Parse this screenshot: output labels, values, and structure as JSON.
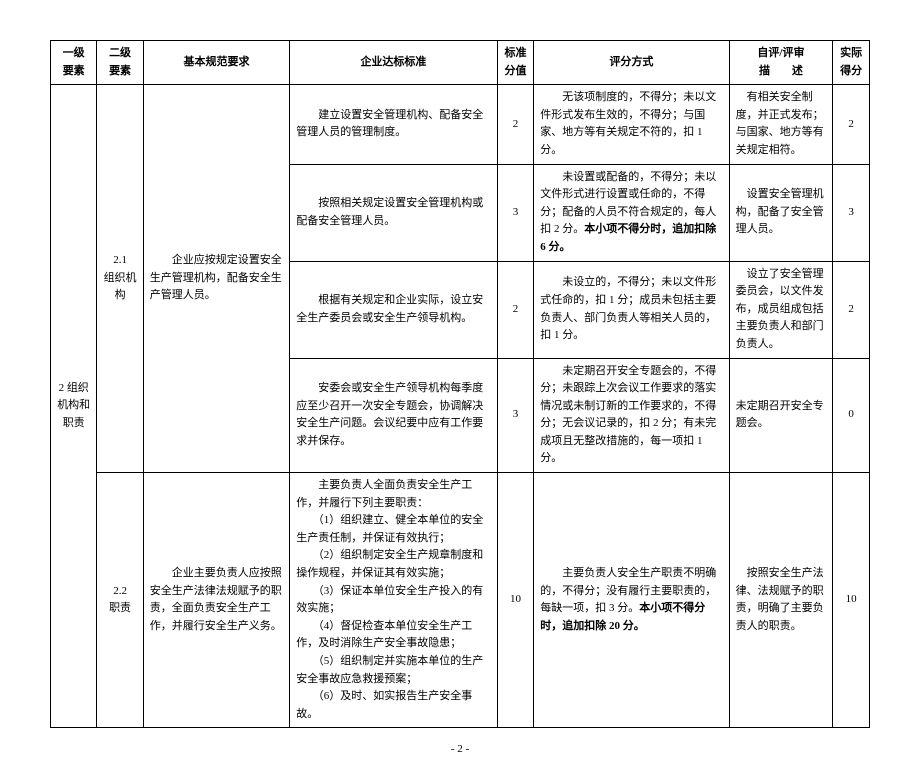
{
  "headers": {
    "level1": "一级\n要素",
    "level2": "二级\n要素",
    "basic": "基本规范要求",
    "standard": "企业达标标准",
    "score": "标准\n分值",
    "method": "评分方式",
    "desc": "自评/评审\n描　　述",
    "actual": "实际\n得分"
  },
  "level1_label": "2 组织机构和职责",
  "section21": {
    "level2": "2.1\n组织机构",
    "basic": "　　企业应按规定设置安全生产管理机构，配备安全生产管理人员。",
    "rows": [
      {
        "standard": "　　建立设置安全管理机构、配备安全管理人员的管理制度。",
        "score": "2",
        "method": "　　无该项制度的，不得分；未以文件形式发布生效的，不得分；与国家、地方等有关规定不符的，扣 1 分。",
        "desc": "　有相关安全制度，并正式发布；与国家、地方等有关规定相符。",
        "actual": "2"
      },
      {
        "standard": "　　按照相关规定设置安全管理机构或配备安全管理人员。",
        "score": "3",
        "method_html": "　　未设置或配备的，不得分；未以文件形式进行设置或任命的，不得分；配备的人员不符合规定的，每人扣 2 分。<b>本小项不得分时，追加扣除 6 分。</b>",
        "desc": "　设置安全管理机构，配备了安全管理人员。",
        "actual": "3"
      },
      {
        "standard": "　　根据有关规定和企业实际，设立安全生产委员会或安全生产领导机构。",
        "score": "2",
        "method": "　　未设立的，不得分；未以文件形式任命的，扣 1 分；成员未包括主要负责人、部门负责人等相关人员的，扣 1 分。",
        "desc": "　设立了安全管理委员会，以文件发布，成员组成包括主要负责人和部门负责人。",
        "actual": "2"
      },
      {
        "standard": "　　安委会或安全生产领导机构每季度应至少召开一次安全专题会，协调解决安全生产问题。会议纪要中应有工作要求并保存。",
        "score": "3",
        "method": "　　未定期召开安全专题会的，不得分；未跟踪上次会议工作要求的落实情况或未制订新的工作要求的，不得分；无会议记录的，扣 2 分；有未完成项且无整改措施的，每一项扣 1 分。",
        "desc": "未定期召开安全专题会。",
        "actual": "0"
      }
    ]
  },
  "section22": {
    "level2": "2.2\n职责",
    "basic": "　　企业主要负责人应按照安全生产法律法规赋予的职责，全面负责安全生产工作，并履行安全生产义务。",
    "row": {
      "standard": "　　主要负责人全面负责安全生产工作，并履行下列主要职责：\n　　（1）组织建立、健全本单位的安全生产责任制，并保证有效执行；\n　　（2）组织制定安全生产规章制度和操作规程，并保证其有效实施；\n　　（3）保证本单位安全生产投入的有效实施；\n　　（4）督促检查本单位安全生产工作，及时消除生产安全事故隐患；\n　　（5）组织制定并实施本单位的生产安全事故应急救援预案；\n　　（6）及时、如实报告生产安全事故。",
      "score": "10",
      "method_html": "　　主要负责人安全生产职责不明确的，不得分；没有履行主要职责的，每缺一项，扣 3 分。<b>本小项不得分时，追加扣除 20 分。</b>",
      "desc": "　按照安全生产法律、法规赋予的职责，明确了主要负责人的职责。",
      "actual": "10"
    }
  },
  "page_number": "- 2 -"
}
